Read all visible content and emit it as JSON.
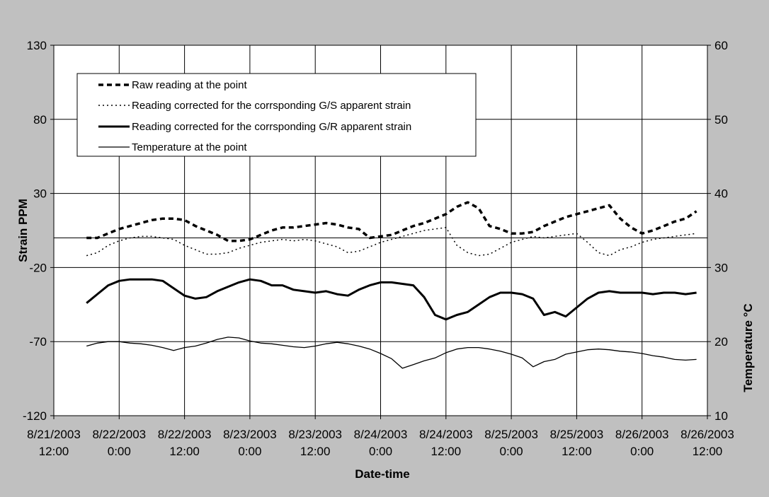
{
  "chart_data": {
    "type": "line",
    "title": "",
    "xlabel": "Date-time",
    "ylabel": "Strain PPM",
    "y2label": "Temperature °C",
    "ylim": [
      -120,
      130
    ],
    "y2lim": [
      10,
      60
    ],
    "xlim_hours": [
      0,
      120
    ],
    "x_ticks": [
      {
        "line1": "8/21/2003",
        "line2": "12:00"
      },
      {
        "line1": "8/22/2003",
        "line2": "0:00"
      },
      {
        "line1": "8/22/2003",
        "line2": "12:00"
      },
      {
        "line1": "8/23/2003",
        "line2": "0:00"
      },
      {
        "line1": "8/23/2003",
        "line2": "12:00"
      },
      {
        "line1": "8/24/2003",
        "line2": "0:00"
      },
      {
        "line1": "8/24/2003",
        "line2": "12:00"
      },
      {
        "line1": "8/25/2003",
        "line2": "0:00"
      },
      {
        "line1": "8/25/2003",
        "line2": "12:00"
      },
      {
        "line1": "8/26/2003",
        "line2": "0:00"
      },
      {
        "line1": "8/26/2003",
        "line2": "12:00"
      }
    ],
    "y_ticks": [
      "130",
      "80",
      "30",
      "-20",
      "-70",
      "-120"
    ],
    "y2_ticks": [
      "60",
      "50",
      "40",
      "30",
      "20",
      "10"
    ],
    "grid": true,
    "legend_position": "top-left",
    "series": [
      {
        "name": "Raw reading at the point",
        "axis": "left",
        "style": "dashed-thick",
        "x": [
          6,
          8,
          10,
          12,
          14,
          16,
          18,
          20,
          22,
          24,
          26,
          28,
          30,
          32,
          34,
          36,
          38,
          40,
          42,
          44,
          46,
          48,
          50,
          52,
          54,
          56,
          58,
          60,
          62,
          64,
          66,
          68,
          70,
          72,
          74,
          76,
          78,
          80,
          82,
          84,
          86,
          88,
          90,
          92,
          94,
          96,
          98,
          100,
          102,
          104,
          106,
          108,
          110,
          112,
          114,
          116,
          118
        ],
        "values": [
          0,
          0,
          3,
          6,
          8,
          10,
          12,
          13,
          13,
          12,
          8,
          5,
          2,
          -2,
          -2,
          -1,
          2,
          5,
          7,
          7,
          8,
          9,
          10,
          9,
          7,
          6,
          0,
          1,
          2,
          5,
          8,
          10,
          13,
          16,
          21,
          24,
          20,
          8,
          6,
          3,
          3,
          4,
          8,
          11,
          14,
          16,
          18,
          20,
          22,
          13,
          7,
          3,
          5,
          8,
          11,
          13,
          18
        ]
      },
      {
        "name": "Reading corrected for the corrsponding G/S apparent strain",
        "axis": "left",
        "style": "dotted",
        "x": [
          6,
          8,
          10,
          12,
          14,
          16,
          18,
          20,
          22,
          24,
          26,
          28,
          30,
          32,
          34,
          36,
          38,
          40,
          42,
          44,
          46,
          48,
          50,
          52,
          54,
          56,
          58,
          60,
          62,
          64,
          66,
          68,
          70,
          72,
          74,
          76,
          78,
          80,
          82,
          84,
          86,
          88,
          90,
          92,
          94,
          96,
          98,
          100,
          102,
          104,
          106,
          108,
          110,
          112,
          114,
          116,
          118
        ],
        "values": [
          -12,
          -10,
          -5,
          -2,
          0,
          1,
          1,
          0,
          -1,
          -5,
          -8,
          -11,
          -11,
          -10,
          -7,
          -5,
          -3,
          -2,
          -1,
          -2,
          -1,
          -2,
          -4,
          -6,
          -10,
          -9,
          -6,
          -3,
          -1,
          1,
          3,
          5,
          6,
          7,
          -5,
          -10,
          -12,
          -11,
          -7,
          -3,
          -1,
          1,
          0,
          1,
          2,
          3,
          -3,
          -10,
          -12,
          -8,
          -6,
          -3,
          -1,
          0,
          1,
          2,
          3
        ]
      },
      {
        "name": "Reading corrected for the corrsponding G/R apparent strain",
        "axis": "left",
        "style": "solid-thick",
        "x": [
          6,
          8,
          10,
          12,
          14,
          16,
          18,
          20,
          22,
          24,
          26,
          28,
          30,
          32,
          34,
          36,
          38,
          40,
          42,
          44,
          46,
          48,
          50,
          52,
          54,
          56,
          58,
          60,
          62,
          64,
          66,
          68,
          70,
          72,
          74,
          76,
          78,
          80,
          82,
          84,
          86,
          88,
          90,
          92,
          94,
          96,
          98,
          100,
          102,
          104,
          106,
          108,
          110,
          112,
          114,
          116,
          118
        ],
        "values": [
          -44,
          -38,
          -32,
          -29,
          -28,
          -28,
          -28,
          -29,
          -34,
          -39,
          -41,
          -40,
          -36,
          -33,
          -30,
          -28,
          -29,
          -32,
          -32,
          -35,
          -36,
          -37,
          -36,
          -38,
          -39,
          -35,
          -32,
          -30,
          -30,
          -31,
          -32,
          -40,
          -52,
          -55,
          -52,
          -50,
          -45,
          -40,
          -37,
          -37,
          -38,
          -41,
          -52,
          -50,
          -53,
          -47,
          -41,
          -37,
          -36,
          -37,
          -37,
          -37,
          -38,
          -37,
          -37,
          -38,
          -37
        ]
      },
      {
        "name": "Temperature at the point",
        "axis": "right",
        "style": "solid-thin",
        "x": [
          6,
          8,
          10,
          12,
          14,
          16,
          18,
          20,
          22,
          24,
          26,
          28,
          30,
          32,
          34,
          36,
          38,
          40,
          42,
          44,
          46,
          48,
          50,
          52,
          54,
          56,
          58,
          60,
          62,
          64,
          66,
          68,
          70,
          72,
          74,
          76,
          78,
          80,
          82,
          84,
          86,
          88,
          90,
          92,
          94,
          96,
          98,
          100,
          102,
          104,
          106,
          108,
          110,
          112,
          114,
          116,
          118
        ],
        "values": [
          19.4,
          19.8,
          20.0,
          20.0,
          19.8,
          19.7,
          19.5,
          19.2,
          18.8,
          19.2,
          19.4,
          19.8,
          20.3,
          20.6,
          20.5,
          20.1,
          19.8,
          19.7,
          19.5,
          19.3,
          19.2,
          19.4,
          19.7,
          19.9,
          19.7,
          19.4,
          19.0,
          18.4,
          17.7,
          16.4,
          16.9,
          17.4,
          17.8,
          18.5,
          19.0,
          19.2,
          19.2,
          19.0,
          18.7,
          18.3,
          17.8,
          16.6,
          17.3,
          17.6,
          18.3,
          18.6,
          18.9,
          19.0,
          18.9,
          18.7,
          18.6,
          18.4,
          18.1,
          17.9,
          17.6,
          17.5,
          17.6
        ]
      }
    ]
  }
}
